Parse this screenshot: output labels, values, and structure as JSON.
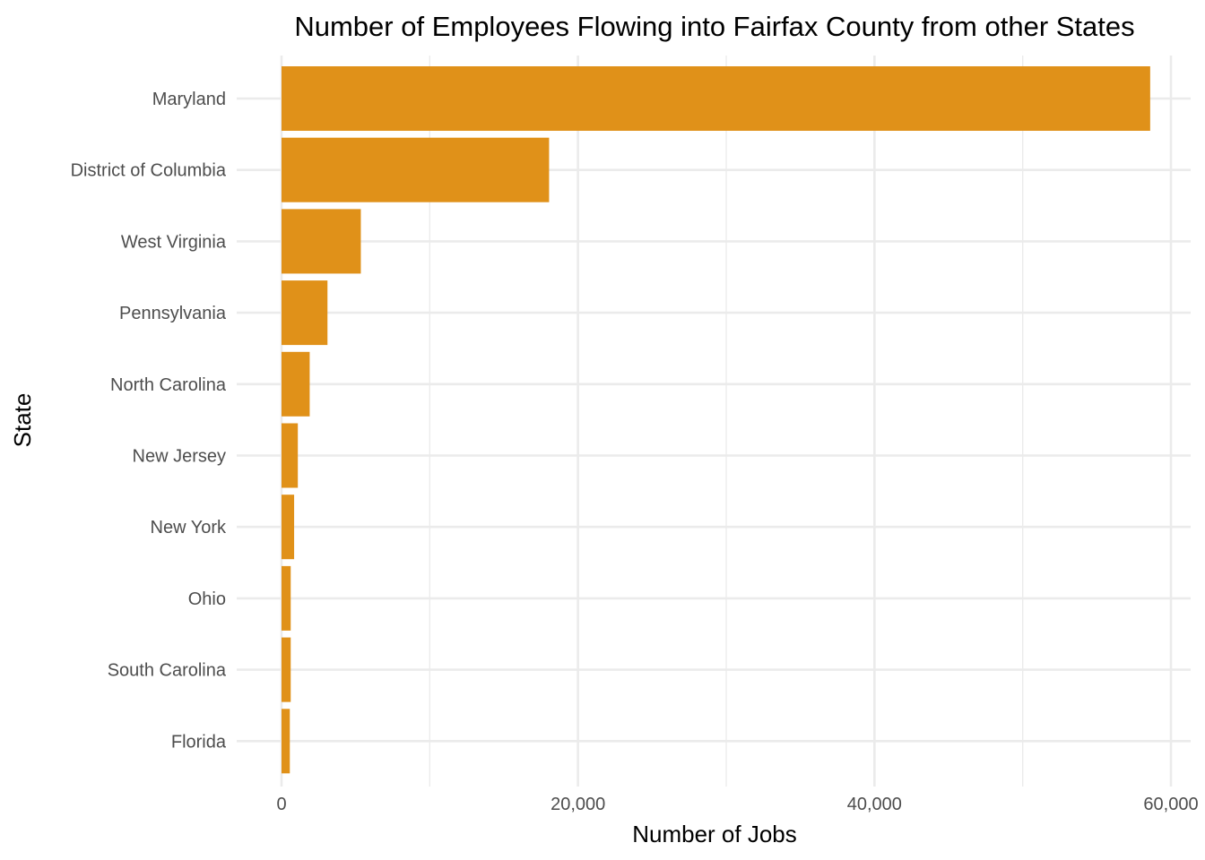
{
  "chart_data": {
    "type": "bar",
    "orientation": "horizontal",
    "title": "Number of Employees Flowing into Fairfax County from other States",
    "xlabel": "Number of Jobs",
    "ylabel": "State",
    "categories": [
      "Maryland",
      "District of Columbia",
      "West Virginia",
      "Pennsylvania",
      "North Carolina",
      "New Jersey",
      "New York",
      "Ohio",
      "South Carolina",
      "Florida"
    ],
    "values": [
      58600,
      18050,
      5350,
      3100,
      1900,
      1100,
      850,
      620,
      620,
      560
    ],
    "xlim": [
      0,
      61000
    ],
    "x_ticks": [
      0,
      20000,
      40000,
      60000
    ],
    "x_tick_labels": [
      "0",
      "20,000",
      "40,000",
      "60,000"
    ],
    "grid": true,
    "bar_color": "#e09119"
  }
}
